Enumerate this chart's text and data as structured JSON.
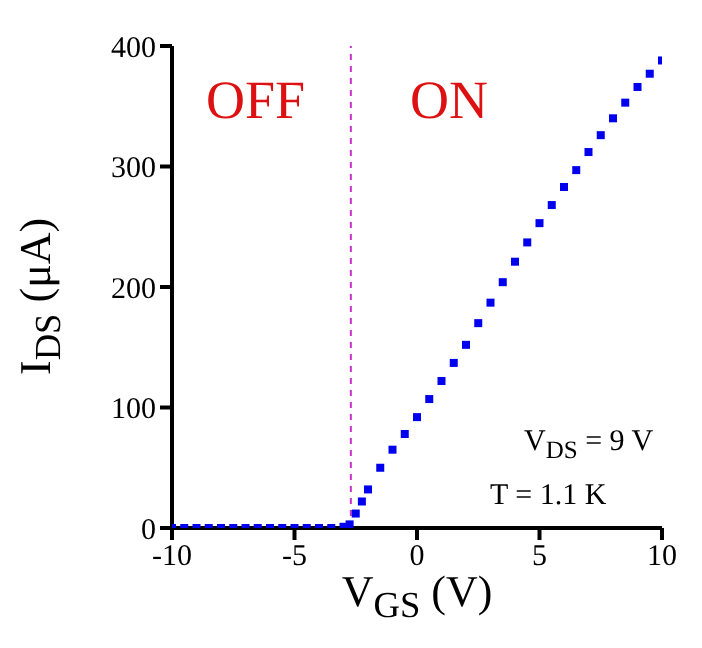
{
  "chart_data": {
    "type": "scatter",
    "xlabel": "V$_{GS}$ (V)",
    "ylabel": "I$_{DS}$ (μA)",
    "x": [
      -10,
      -9.5,
      -9,
      -8.5,
      -8,
      -7.5,
      -7,
      -6.5,
      -6,
      -5.5,
      -5,
      -4.5,
      -4,
      -3.5,
      -3,
      -2.75,
      -2.5,
      -2.25,
      -2,
      -1.5,
      -1,
      -0.5,
      0,
      0.5,
      1,
      1.5,
      2,
      2.5,
      3,
      3.5,
      4,
      4.5,
      5,
      5.5,
      6,
      6.5,
      7,
      7.5,
      8,
      8.5,
      9,
      9.5,
      10
    ],
    "series": [
      {
        "color": "#0000ee",
        "values": [
          0,
          0,
          0,
          0,
          0,
          0,
          0,
          0,
          0,
          0,
          0,
          0,
          0,
          0,
          1,
          3,
          12,
          22,
          32,
          50,
          65,
          78,
          92,
          107,
          122,
          137,
          152,
          170,
          187,
          204,
          221,
          237,
          253,
          268,
          283,
          297,
          312,
          326,
          340,
          353,
          366,
          377,
          388
        ]
      }
    ],
    "xlim": [
      -10,
      10
    ],
    "ylim": [
      0,
      400
    ],
    "xticks": [
      -10,
      -5,
      0,
      5,
      10
    ],
    "yticks": [
      0,
      100,
      200,
      300,
      400
    ],
    "grid": false,
    "marker": "square",
    "ref_lines": [
      {
        "axis": "x",
        "value": -2.7,
        "color": "#cc33cc",
        "line_style": "dashed"
      }
    ],
    "annotations": [
      "OFF",
      "ON",
      "V$_{DS}$ = 9 V",
      "T = 1.1 K"
    ]
  }
}
